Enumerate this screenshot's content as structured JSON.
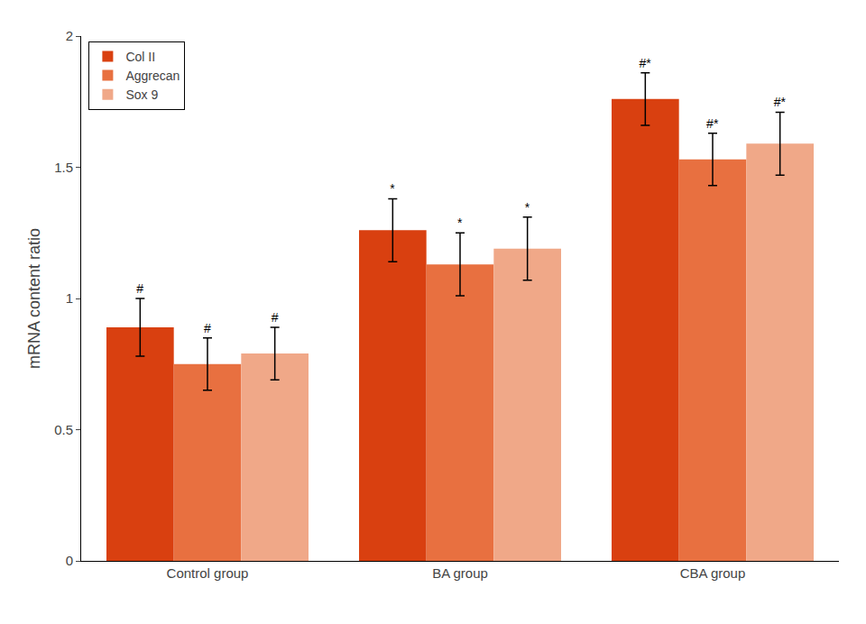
{
  "chart_data": {
    "type": "bar",
    "categories": [
      "Control group",
      "BA group",
      "CBA group"
    ],
    "series": [
      {
        "name": "Col II",
        "color": "#D94010",
        "values": [
          0.89,
          1.26,
          1.76
        ],
        "errors": [
          0.11,
          0.12,
          0.1
        ],
        "annotations": [
          "#",
          "*",
          "#*"
        ]
      },
      {
        "name": "Aggrecan",
        "color": "#E87040",
        "values": [
          0.75,
          1.13,
          1.53
        ],
        "errors": [
          0.1,
          0.12,
          0.1
        ],
        "annotations": [
          "#",
          "*",
          "#*"
        ]
      },
      {
        "name": "Sox 9",
        "color": "#F0A888",
        "values": [
          0.79,
          1.19,
          1.59
        ],
        "errors": [
          0.1,
          0.12,
          0.12
        ],
        "annotations": [
          "#",
          "*",
          "#*"
        ]
      }
    ],
    "ylabel": "mRNA content ratio",
    "ylim": [
      0,
      2.0
    ],
    "yticks": [
      0,
      0.5,
      1,
      1.5,
      2
    ],
    "grid": false,
    "legend": "upper left"
  }
}
